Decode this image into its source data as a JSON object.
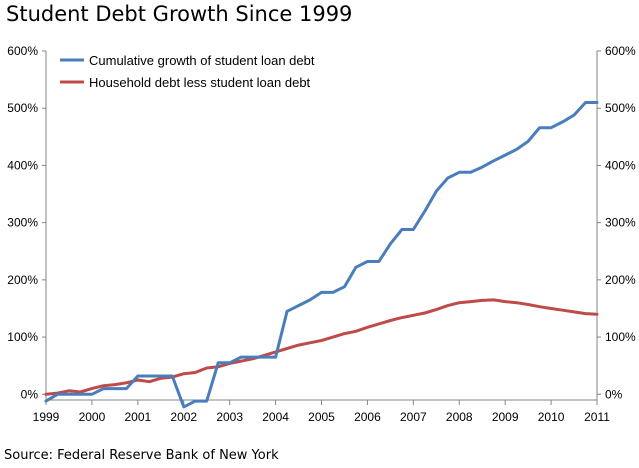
{
  "title": "Student Debt Growth Since 1999",
  "source": "Source: Federal Reserve Bank of New York",
  "colors": {
    "student": "#4a7ebb",
    "household": "#be4b48",
    "axis": "#868686"
  },
  "chart_data": {
    "type": "line",
    "title": "Student Debt Growth Since 1999",
    "xlim": [
      1999,
      2011
    ],
    "ylim": [
      -10,
      600
    ],
    "y_ticks": [
      0,
      100,
      200,
      300,
      400,
      500,
      600
    ],
    "y_tick_labels": [
      "0%",
      "100%",
      "200%",
      "300%",
      "400%",
      "500%",
      "600%"
    ],
    "x_ticks": [
      1999,
      2000,
      2001,
      2002,
      2003,
      2004,
      2005,
      2006,
      2007,
      2008,
      2009,
      2010,
      2011
    ],
    "x_tick_labels": [
      "1999",
      "2000",
      "2001",
      "2002",
      "2003",
      "2004",
      "2005",
      "2006",
      "2007",
      "2008",
      "2009",
      "2010",
      "2011"
    ],
    "grid": false,
    "legend_position": "top-left",
    "series": [
      {
        "name": "Cumulative growth of student loan debt",
        "color": "#4a7ebb",
        "x": [
          1999.0,
          1999.25,
          1999.5,
          1999.75,
          2000.0,
          2000.25,
          2000.5,
          2000.75,
          2001.0,
          2001.25,
          2001.5,
          2001.75,
          2002.0,
          2002.25,
          2002.5,
          2002.75,
          2003.0,
          2003.25,
          2003.5,
          2003.75,
          2004.0,
          2004.25,
          2004.5,
          2004.75,
          2005.0,
          2005.25,
          2005.5,
          2005.75,
          2006.0,
          2006.25,
          2006.5,
          2006.75,
          2007.0,
          2007.25,
          2007.5,
          2007.75,
          2008.0,
          2008.25,
          2008.5,
          2008.75,
          2009.0,
          2009.25,
          2009.5,
          2009.75,
          2010.0,
          2010.25,
          2010.5,
          2010.75,
          2011.0
        ],
        "y": [
          -12,
          0,
          0,
          0,
          0,
          10,
          10,
          10,
          32,
          32,
          32,
          32,
          -22,
          -12,
          -12,
          55,
          55,
          65,
          65,
          65,
          65,
          145,
          155,
          165,
          178,
          178,
          188,
          222,
          232,
          232,
          263,
          288,
          288,
          320,
          355,
          378,
          388,
          388,
          397,
          408,
          418,
          428,
          442,
          466,
          466,
          476,
          488,
          510,
          510
        ]
      },
      {
        "name": "Household debt less student loan debt",
        "color": "#be4b48",
        "x": [
          1999.0,
          1999.25,
          1999.5,
          1999.75,
          2000.0,
          2000.25,
          2000.5,
          2000.75,
          2001.0,
          2001.25,
          2001.5,
          2001.75,
          2002.0,
          2002.25,
          2002.5,
          2002.75,
          2003.0,
          2003.25,
          2003.5,
          2003.75,
          2004.0,
          2004.25,
          2004.5,
          2004.75,
          2005.0,
          2005.25,
          2005.5,
          2005.75,
          2006.0,
          2006.25,
          2006.5,
          2006.75,
          2007.0,
          2007.25,
          2007.5,
          2007.75,
          2008.0,
          2008.25,
          2008.5,
          2008.75,
          2009.0,
          2009.25,
          2009.5,
          2009.75,
          2010.0,
          2010.25,
          2010.5,
          2010.75,
          2011.0
        ],
        "y": [
          0,
          2,
          6,
          4,
          10,
          15,
          17,
          20,
          25,
          22,
          28,
          30,
          36,
          38,
          46,
          48,
          54,
          58,
          62,
          68,
          74,
          80,
          86,
          90,
          94,
          100,
          106,
          110,
          117,
          123,
          129,
          134,
          138,
          142,
          148,
          155,
          160,
          162,
          164,
          165,
          162,
          160,
          157,
          153,
          150,
          147,
          144,
          141,
          140
        ]
      }
    ]
  }
}
